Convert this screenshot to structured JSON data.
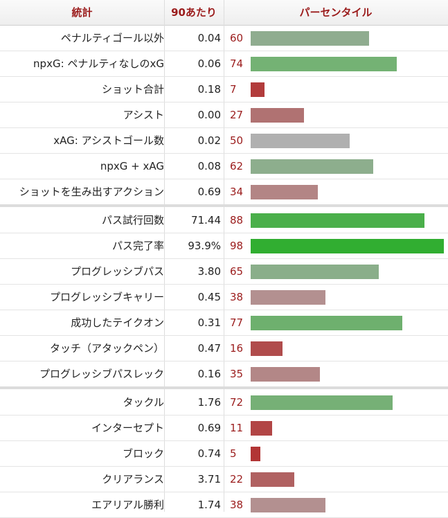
{
  "header": {
    "stat": "統計",
    "per90": "90あたり",
    "percentile": "パーセンタイル"
  },
  "colors": {
    "header_text": "#9b1c1c",
    "percentile_text": "#9b1c1c"
  },
  "chart_data": {
    "type": "bar",
    "orientation": "horizontal",
    "xlim": [
      0,
      100
    ],
    "groups": [
      {
        "rows": [
          {
            "label": "ペナルティゴール以外",
            "per90": "0.04",
            "percentile": 60,
            "color": "#8fac8f"
          },
          {
            "label": "npxG: ペナルティなしのxG",
            "per90": "0.06",
            "percentile": 74,
            "color": "#74b274"
          },
          {
            "label": "ショット合計",
            "per90": "0.18",
            "percentile": 7,
            "color": "#b23c3c"
          },
          {
            "label": "アシスト",
            "per90": "0.00",
            "percentile": 27,
            "color": "#b07272"
          },
          {
            "label": "xAG: アシストゴール数",
            "per90": "0.02",
            "percentile": 50,
            "color": "#b0b0b0"
          },
          {
            "label": "npxG + xAG",
            "per90": "0.08",
            "percentile": 62,
            "color": "#8dae8d"
          },
          {
            "label": "ショットを生み出すアクション",
            "per90": "0.69",
            "percentile": 34,
            "color": "#b38585"
          }
        ]
      },
      {
        "rows": [
          {
            "label": "パス試行回数",
            "per90": "71.44",
            "percentile": 88,
            "color": "#4aaf4a"
          },
          {
            "label": "パス完了率",
            "per90": "93.9%",
            "percentile": 98,
            "color": "#31ae31"
          },
          {
            "label": "プログレッシブパス",
            "per90": "3.80",
            "percentile": 65,
            "color": "#8aae8a"
          },
          {
            "label": "プログレッシブキャリー",
            "per90": "0.45",
            "percentile": 38,
            "color": "#b39090"
          },
          {
            "label": "成功したテイクオン",
            "per90": "0.31",
            "percentile": 77,
            "color": "#6eb06e"
          },
          {
            "label": "タッチ（アタックペン）",
            "per90": "0.47",
            "percentile": 16,
            "color": "#b04c4c"
          },
          {
            "label": "プログレッシブパスレック",
            "per90": "0.16",
            "percentile": 35,
            "color": "#b38787"
          }
        ]
      },
      {
        "rows": [
          {
            "label": "タックル",
            "per90": "1.76",
            "percentile": 72,
            "color": "#76b076"
          },
          {
            "label": "インターセプト",
            "per90": "0.69",
            "percentile": 11,
            "color": "#b24545"
          },
          {
            "label": "ブロック",
            "per90": "0.74",
            "percentile": 5,
            "color": "#b23535"
          },
          {
            "label": "クリアランス",
            "per90": "3.71",
            "percentile": 22,
            "color": "#b06161"
          },
          {
            "label": "エアリアル勝利",
            "per90": "1.74",
            "percentile": 38,
            "color": "#b39090"
          }
        ]
      }
    ]
  }
}
